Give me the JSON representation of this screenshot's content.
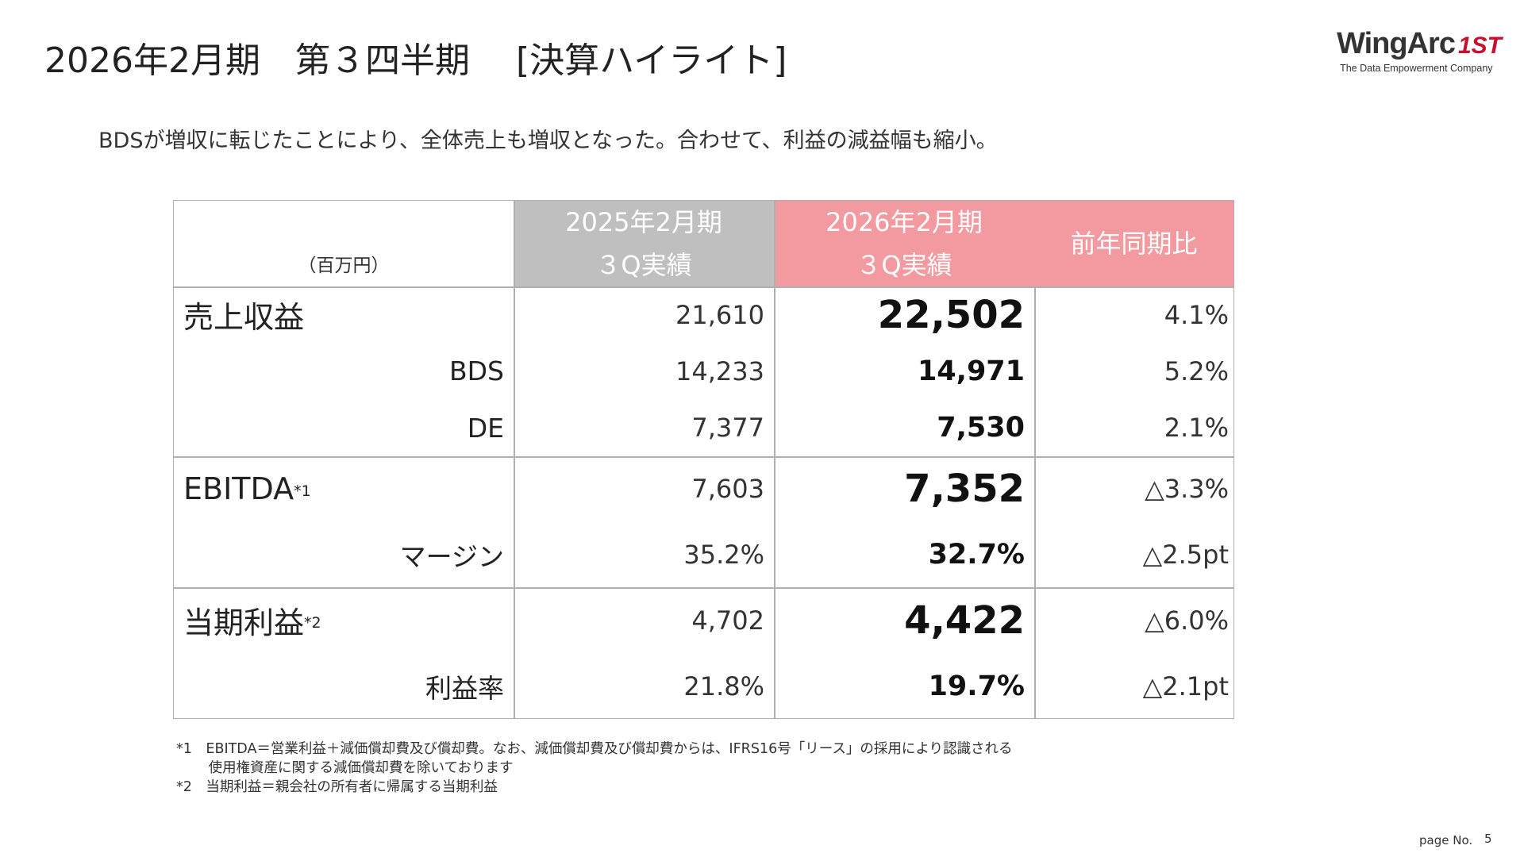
{
  "header": {
    "title": "2026年2月期　第３四半期　 [決算ハイライト]",
    "subtitle": "BDSが増収に転じたことにより、全体売上も増収となった。合わせて、利益の減益幅も縮小。"
  },
  "logo": {
    "name": "WingArc",
    "mark": "1ST",
    "tagline": "The Data Empowerment Company"
  },
  "table": {
    "unit": "（百万円）",
    "columns": [
      {
        "line1": "2025年2月期",
        "line2": "３Q実績"
      },
      {
        "line1": "2026年2月期",
        "line2": "３Q実績"
      },
      {
        "line1": "前年同期比"
      }
    ],
    "groups": [
      {
        "rows": [
          {
            "label": "売上収益",
            "cells": [
              "21,610",
              "22,502",
              "4.1%"
            ]
          },
          {
            "label": "BDS",
            "cells": [
              "14,233",
              "14,971",
              "5.2%"
            ]
          },
          {
            "label": "DE",
            "cells": [
              "7,377",
              "7,530",
              "2.1%"
            ]
          }
        ]
      },
      {
        "rows": [
          {
            "label": "EBITDA",
            "note": "*1",
            "cells": [
              "7,603",
              "7,352",
              "△3.3%"
            ]
          },
          {
            "label": "マージン",
            "cells": [
              "35.2%",
              "32.7%",
              "△2.5pt"
            ]
          }
        ]
      },
      {
        "rows": [
          {
            "label": "当期利益",
            "note": "*2",
            "cells": [
              "4,702",
              "4,422",
              "△6.0%"
            ]
          },
          {
            "label": "利益率",
            "cells": [
              "21.8%",
              "19.7%",
              "△2.1pt"
            ]
          }
        ]
      }
    ]
  },
  "footnotes": [
    "*1　EBITDA＝営業利益＋減価償却費及び償却費。なお、減価償却費及び償却費からは、IFRS16号「リース」の採用により認識される",
    "　　 使用権資産に関する減価償却費を除いております",
    "*2　当期利益＝親会社の所有者に帰属する当期利益"
  ],
  "footer": {
    "page_label": "page No.",
    "page_number": "5"
  }
}
